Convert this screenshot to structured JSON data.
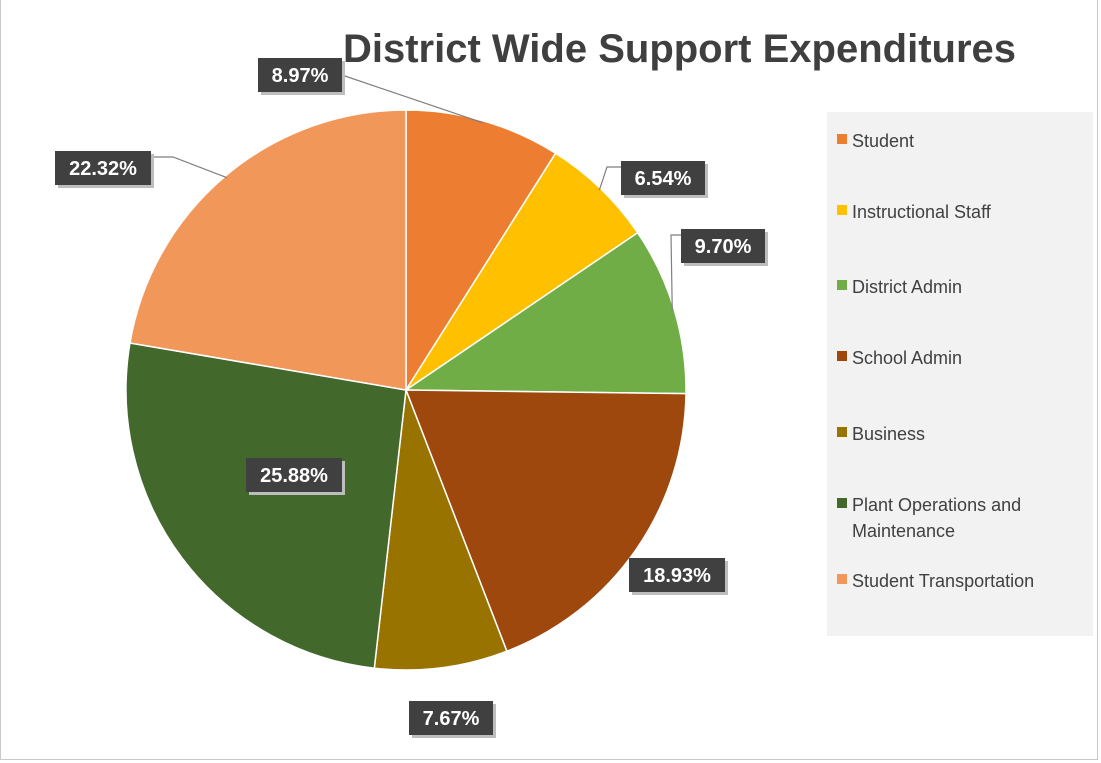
{
  "chart_data": {
    "type": "pie",
    "title": "District Wide Support Expenditures",
    "slices": [
      {
        "label": "Student",
        "value": 8.97,
        "display": "8.97%",
        "color": "#ed7d31"
      },
      {
        "label": "Instructional Staff",
        "value": 6.54,
        "display": "6.54%",
        "color": "#ffc000"
      },
      {
        "label": "District Admin",
        "value": 9.7,
        "display": "9.70%",
        "color": "#70ad47"
      },
      {
        "label": "School Admin",
        "value": 18.93,
        "display": "18.93%",
        "color": "#9e480e"
      },
      {
        "label": "Business",
        "value": 7.67,
        "display": "7.67%",
        "color": "#997300"
      },
      {
        "label": "Plant Operations and Maintenance",
        "value": 25.88,
        "display": "25.88%",
        "color": "#43682b"
      },
      {
        "label": "Student Transportation",
        "value": 22.32,
        "display": "22.32%",
        "color": "#f1975a"
      }
    ],
    "legend_position": "right",
    "start_angle": "12 o'clock",
    "direction": "clockwise"
  }
}
